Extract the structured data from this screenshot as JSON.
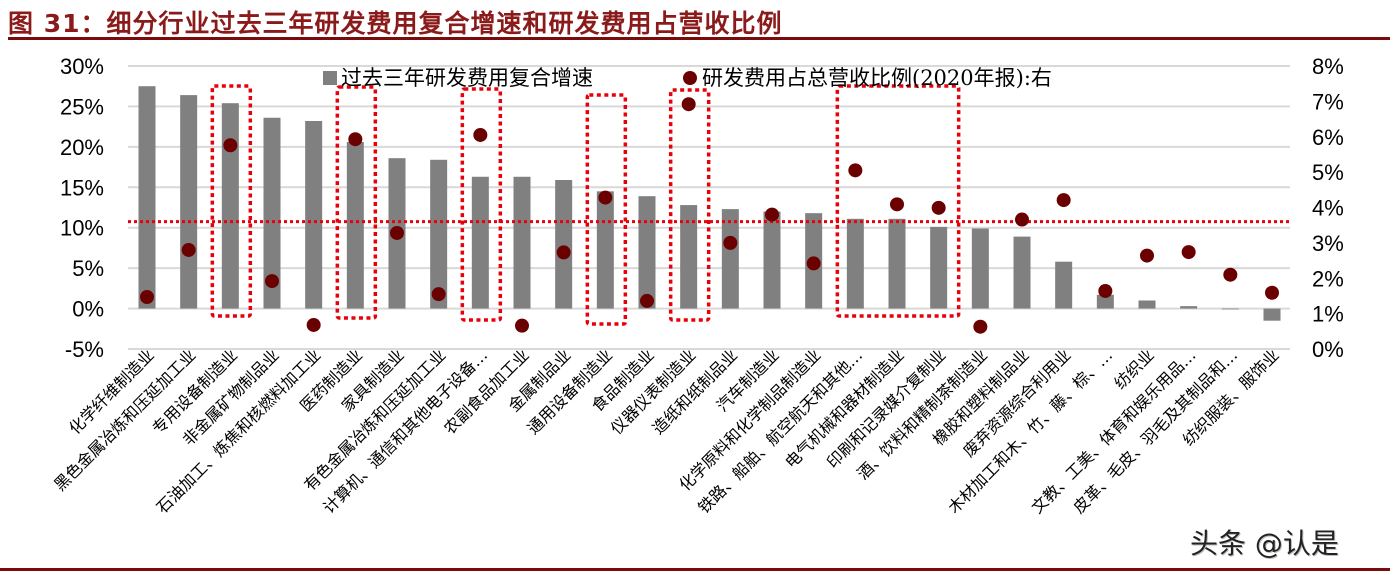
{
  "figure": {
    "title": "图 31：细分行业过去三年研发费用复合增速和研发费用占营收比例",
    "watermark": "头条 @认是"
  },
  "legend": {
    "bar_label": "过去三年研发费用复合增速",
    "dot_label": "研发费用占总营收比例(2020年报):右"
  },
  "colors": {
    "title": "#8B1A1A",
    "rule": "#7a0c0c",
    "bar": "#808080",
    "dot": "#6B0000",
    "highlight": "#E8000B",
    "grid": "#D9D9D9"
  },
  "chart_data": {
    "type": "bar+scatter",
    "title": "细分行业过去三年研发费用复合增速和研发费用占营收比例",
    "xlabel": "",
    "ylabel_left": "",
    "ylabel_right": "",
    "ylim_left": [
      -0.05,
      0.3
    ],
    "ylim_right": [
      0.0,
      0.08
    ],
    "left_ticks": [
      "-5%",
      "0%",
      "5%",
      "10%",
      "15%",
      "20%",
      "25%",
      "30%"
    ],
    "right_ticks": [
      "0%",
      "1%",
      "2%",
      "3%",
      "4%",
      "5%",
      "6%",
      "7%",
      "8%"
    ],
    "grid": true,
    "legend_position": "top-inside",
    "categories": [
      "化学纤维制造业",
      "黑色金属冶炼和压延加工业",
      "专用设备制造业",
      "非金属矿物制品业",
      "石油加工、炼焦和核燃料加工业",
      "医药制造业",
      "家具制造业",
      "有色金属冶炼和压延加工业",
      "计算机、通信和其他电子设备…",
      "农副食品加工业",
      "金属制品业",
      "通用设备制造业",
      "食品制造业",
      "仪器仪表制造业",
      "造纸和纸制品业",
      "汽车制造业",
      "化学原料和化学制品制造业",
      "铁路、船舶、航空航天和其他…",
      "电气机械和器材制造业",
      "印刷和记录媒介复制业",
      "酒、饮料和精制茶制造业",
      "橡胶和塑料制品业",
      "废弃资源综合利用业",
      "木材加工和木、竹、藤、棕、…",
      "纺织业",
      "文教、工美、体育和娱乐用品…",
      "皮革、毛皮、羽毛及其制品和…",
      "纺织服装、服饰业"
    ],
    "series": [
      {
        "name": "过去三年研发费用复合增速",
        "type": "bar",
        "axis": "left",
        "values": [
          27.5,
          26.4,
          25.4,
          23.6,
          23.2,
          20.6,
          18.6,
          18.4,
          16.3,
          16.3,
          15.9,
          14.5,
          13.9,
          12.8,
          12.3,
          12.0,
          11.8,
          11.1,
          11.1,
          10.1,
          9.9,
          8.9,
          5.8,
          1.7,
          1.0,
          0.3,
          0.0,
          -1.5
        ]
      },
      {
        "name": "研发费用占总营收比例(2020年报):右",
        "type": "scatter",
        "axis": "right",
        "values": [
          1.47,
          2.8,
          5.76,
          1.92,
          0.68,
          5.93,
          3.28,
          1.55,
          6.05,
          0.66,
          2.73,
          4.28,
          1.36,
          6.92,
          3.0,
          3.8,
          2.42,
          5.05,
          4.09,
          3.99,
          0.63,
          3.66,
          4.21,
          1.64,
          2.64,
          2.74,
          2.1,
          1.59
        ]
      }
    ],
    "annotations": {
      "reference_line": {
        "style": "red dotted horizontal",
        "left_value": 10.8,
        "right_value": 3.6
      },
      "highlight_boxes": [
        {
          "categories": [
            "专用设备制造业"
          ]
        },
        {
          "categories": [
            "医药制造业"
          ]
        },
        {
          "categories": [
            "计算机、通信和其他电子设备…"
          ]
        },
        {
          "categories": [
            "通用设备制造业"
          ]
        },
        {
          "categories": [
            "仪器仪表制造业"
          ]
        },
        {
          "categories": [
            "铁路、船舶、航空航天和其他…",
            "电气机械和器材制造业",
            "印刷和记录媒介复制业"
          ]
        }
      ]
    }
  }
}
